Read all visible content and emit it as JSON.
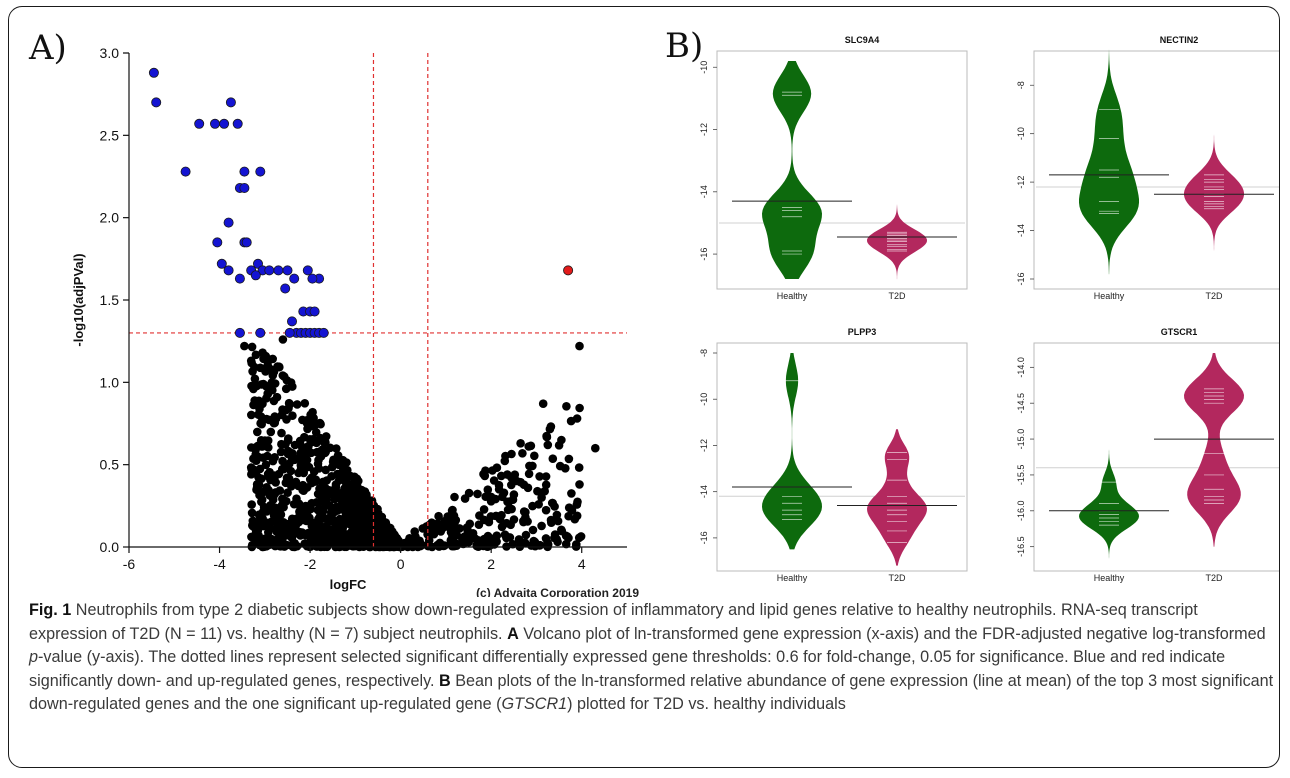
{
  "panel_labels": {
    "a": "A)",
    "b": "B)"
  },
  "caption": {
    "fig_label": "Fig. 1",
    "s1": " Neutrophils from type 2 diabetic subjects show down-regulated expression of inflammatory and lipid genes relative to healthy neutrophils. RNA-seq transcript expression of T2D (N = 11) vs. healthy (N = 7) subject neutrophils. ",
    "a_label": "A",
    "s2": " Volcano plot of ln-transformed gene expression (x-axis) and the FDR-adjusted negative log-transformed ",
    "p_italic": "p",
    "s3": "-value (y-axis). The dotted lines represent selected significant differentially expressed gene thresholds: 0.6 for fold-change, 0.05 for significance. Blue and red indicate significantly down- and up-regulated genes, respectively. ",
    "b_label": "B",
    "s4": " Bean plots of the ln-transformed relative abundance of gene expression (line at mean) of the top 3 most significant down-regulated genes and the one significant up-regulated gene (",
    "gene_italic": "GTSCR1",
    "s5": ") plotted for T2D vs. healthy individuals"
  },
  "colors": {
    "down": "#1414d2",
    "up": "#e21b1b",
    "ns": "#000000",
    "threshold": "#e03030",
    "healthy": "#0d6a0d",
    "t2d": "#b3285e"
  },
  "chart_data": [
    {
      "type": "scatter",
      "title": "",
      "xlabel": "logFC",
      "ylabel": "-log10(adjPVal)",
      "xlim": [
        -6,
        5
      ],
      "ylim": [
        0,
        3
      ],
      "xticks": [
        "-6",
        "-4",
        "-2",
        "0",
        "2",
        "4"
      ],
      "yticks": [
        "0.0",
        "0.5",
        "1.0",
        "1.5",
        "2.0",
        "2.5",
        "3.0"
      ],
      "thresholds": {
        "x": [
          -0.6,
          0.6
        ],
        "y": 1.3
      },
      "watermark": "(c) Advaita Corporation 2019",
      "series": [
        {
          "category": "down",
          "points": [
            [
              -5.45,
              2.88
            ],
            [
              -5.4,
              2.7
            ],
            [
              -4.75,
              2.28
            ],
            [
              -4.45,
              2.57
            ],
            [
              -4.1,
              2.57
            ],
            [
              -3.9,
              2.57
            ],
            [
              -3.6,
              2.57
            ],
            [
              -3.75,
              2.7
            ],
            [
              -3.45,
              2.28
            ],
            [
              -3.55,
              2.18
            ],
            [
              -3.45,
              2.18
            ],
            [
              -3.1,
              2.28
            ],
            [
              -3.8,
              1.97
            ],
            [
              -4.05,
              1.85
            ],
            [
              -3.45,
              1.85
            ],
            [
              -3.4,
              1.85
            ],
            [
              -3.95,
              1.72
            ],
            [
              -3.8,
              1.68
            ],
            [
              -3.55,
              1.63
            ],
            [
              -3.3,
              1.68
            ],
            [
              -3.15,
              1.72
            ],
            [
              -3.05,
              1.68
            ],
            [
              -3.2,
              1.65
            ],
            [
              -2.9,
              1.68
            ],
            [
              -2.7,
              1.68
            ],
            [
              -2.5,
              1.68
            ],
            [
              -2.05,
              1.68
            ],
            [
              -1.8,
              1.63
            ],
            [
              -1.95,
              1.63
            ],
            [
              -2.35,
              1.63
            ],
            [
              -2.55,
              1.57
            ],
            [
              -2.15,
              1.43
            ],
            [
              -2.0,
              1.43
            ],
            [
              -1.9,
              1.43
            ],
            [
              -2.4,
              1.37
            ],
            [
              -2.3,
              1.3
            ],
            [
              -2.2,
              1.3
            ],
            [
              -2.1,
              1.3
            ],
            [
              -2.0,
              1.3
            ],
            [
              -1.9,
              1.3
            ],
            [
              -1.8,
              1.3
            ],
            [
              -1.7,
              1.3
            ],
            [
              -3.55,
              1.3
            ],
            [
              -3.1,
              1.3
            ],
            [
              -2.45,
              1.3
            ]
          ]
        },
        {
          "category": "up",
          "points": [
            [
              3.7,
              1.68
            ]
          ]
        }
      ]
    },
    {
      "type": "bean",
      "title": "SLC9A4",
      "categories": [
        "Healthy",
        "T2D"
      ],
      "ylim": [
        -16.8,
        -9.8
      ],
      "yticks": [
        "-10",
        "-12",
        "-14",
        "-16"
      ],
      "overall_mean": -15.0,
      "beans": [
        {
          "group": "Healthy",
          "mean": -14.3,
          "min": -16.8,
          "max": -9.8,
          "values": [
            -10.8,
            -10.9,
            -14.5,
            -14.6,
            -14.8,
            -15.9,
            -16.0
          ]
        },
        {
          "group": "T2D",
          "mean": -15.45,
          "min": -17.0,
          "max": -13.6,
          "values": [
            -15.3,
            -15.35,
            -15.4,
            -15.45,
            -15.5,
            -15.55,
            -15.6,
            -15.7,
            -15.75,
            -15.85,
            -15.9
          ]
        }
      ]
    },
    {
      "type": "bean",
      "title": "NECTIN2",
      "categories": [
        "Healthy",
        "T2D"
      ],
      "ylim": [
        -16,
        -7
      ],
      "yticks": [
        "-8",
        "-10",
        "-12",
        "-14",
        "-16"
      ],
      "overall_mean": -12.2,
      "beans": [
        {
          "group": "Healthy",
          "mean": -11.7,
          "min": -15.8,
          "max": -6.5,
          "values": [
            -9.0,
            -11.5,
            -12.8,
            -13.2,
            -13.3,
            -11.8,
            -10.2
          ]
        },
        {
          "group": "T2D",
          "mean": -12.5,
          "min": -15.8,
          "max": -9.5,
          "values": [
            -11.7,
            -11.9,
            -12.0,
            -12.3,
            -12.5,
            -12.6,
            -12.8,
            -12.9,
            -13.0,
            -13.1,
            -12.2
          ]
        }
      ]
    },
    {
      "type": "bean",
      "title": "PLPP3",
      "categories": [
        "Healthy",
        "T2D"
      ],
      "ylim": [
        -17,
        -8
      ],
      "yticks": [
        "-8",
        "-10",
        "-12",
        "-14",
        "-16"
      ],
      "overall_mean": -14.2,
      "beans": [
        {
          "group": "Healthy",
          "mean": -13.8,
          "min": -16.5,
          "max": -8.0,
          "values": [
            -9.2,
            -13.8,
            -14.2,
            -14.5,
            -14.8,
            -15.0,
            -15.2
          ]
        },
        {
          "group": "T2D",
          "mean": -14.6,
          "min": -17.2,
          "max": -11.3,
          "values": [
            -12.3,
            -12.6,
            -13.5,
            -14.2,
            -14.5,
            -14.6,
            -14.8,
            -15.0,
            -15.3,
            -15.7,
            -16.2
          ]
        }
      ]
    },
    {
      "type": "bean",
      "title": "GTSCR1",
      "categories": [
        "Healthy",
        "T2D"
      ],
      "ylim": [
        -16.7,
        -13.8
      ],
      "yticks": [
        "-14.0",
        "-14.5",
        "-15.0",
        "-15.5",
        "-16.0",
        "-16.5"
      ],
      "overall_mean": -15.4,
      "beans": [
        {
          "group": "Healthy",
          "mean": -16.0,
          "min": -16.7,
          "max": -15.0,
          "values": [
            -15.6,
            -15.9,
            -16.0,
            -16.05,
            -16.1,
            -16.15,
            -16.2
          ]
        },
        {
          "group": "T2D",
          "mean": -15.0,
          "min": -16.5,
          "max": -13.8,
          "values": [
            -14.3,
            -14.35,
            -14.4,
            -14.45,
            -14.5,
            -15.2,
            -15.5,
            -15.7,
            -15.8,
            -15.85,
            -15.9
          ]
        }
      ]
    }
  ]
}
